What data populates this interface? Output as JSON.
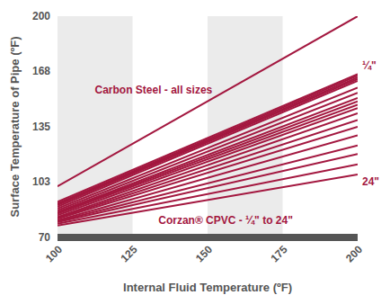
{
  "chart_data": {
    "type": "line",
    "x_label": "Internal Fluid Temperature (ºF)",
    "y_label": "Surface Temperature of Pipe (ºF)",
    "color": "#a3173f",
    "x": [
      100,
      200
    ],
    "xlim": [
      100,
      200
    ],
    "xticks": [
      100,
      125,
      150,
      175,
      200
    ],
    "ylim": [
      70,
      200
    ],
    "yticks": [
      70,
      103,
      135,
      168,
      200
    ],
    "grid": false,
    "series": [
      {
        "values": [
          100,
          200
        ]
      },
      {
        "values": [
          91,
          166
        ]
      },
      {
        "values": [
          90,
          165
        ]
      },
      {
        "values": [
          89.5,
          164
        ]
      },
      {
        "values": [
          89,
          163
        ]
      },
      {
        "values": [
          88,
          162
        ]
      },
      {
        "values": [
          87,
          158
        ]
      },
      {
        "values": [
          86,
          155
        ]
      },
      {
        "values": [
          85,
          152
        ]
      },
      {
        "values": [
          84.5,
          150
        ]
      },
      {
        "values": [
          84,
          148
        ]
      },
      {
        "values": [
          83,
          146
        ]
      },
      {
        "values": [
          82,
          143
        ]
      },
      {
        "values": [
          81.5,
          139
        ]
      },
      {
        "values": [
          81,
          135
        ]
      },
      {
        "values": [
          80,
          130
        ]
      },
      {
        "values": [
          79.5,
          124
        ]
      },
      {
        "values": [
          79,
          119
        ]
      },
      {
        "values": [
          78,
          113
        ]
      },
      {
        "values": [
          77,
          107
        ]
      }
    ],
    "annotations": [
      {
        "text": "Carbon Steel - all sizes",
        "x": 132,
        "y": 157
      },
      {
        "text": "Corzan® CPVC - ¼\" to 24\"",
        "x": 156,
        "y": 80
      },
      {
        "text": "¼\"",
        "x": 200,
        "y": 171
      },
      {
        "text": "24\"",
        "x": 200,
        "y": 103
      }
    ]
  }
}
